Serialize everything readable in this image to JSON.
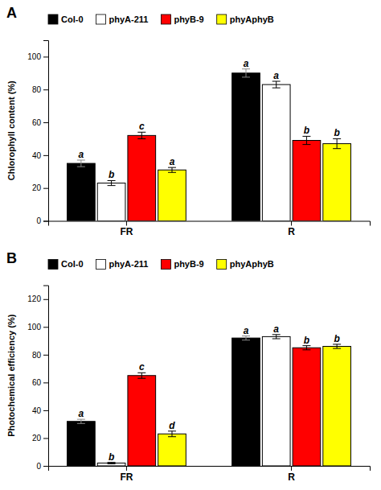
{
  "chart_data": [
    {
      "type": "bar",
      "title": "A",
      "ylabel": "Chlorophyll content (%)",
      "categories": [
        "FR",
        "R"
      ],
      "series": [
        {
          "name": "Col-0",
          "color": "#000000",
          "values": [
            35,
            90
          ],
          "errors": [
            2.0,
            2.5
          ],
          "letters": [
            "a",
            "a"
          ]
        },
        {
          "name": "phyA-211",
          "color": "#ffffff",
          "values": [
            23,
            83
          ],
          "errors": [
            1.5,
            2.0
          ],
          "letters": [
            "b",
            "a"
          ]
        },
        {
          "name": "phyB-9",
          "color": "#ff0000",
          "values": [
            52,
            49
          ],
          "errors": [
            2.0,
            2.5
          ],
          "letters": [
            "c",
            "b"
          ]
        },
        {
          "name": "phyAphyB",
          "color": "#ffff00",
          "values": [
            31,
            47
          ],
          "errors": [
            1.5,
            3.0
          ],
          "letters": [
            "a",
            "b"
          ]
        }
      ],
      "ylim": [
        0,
        110
      ],
      "yticks": [
        0,
        20,
        40,
        60,
        80,
        100
      ],
      "grid": false,
      "legend": "top"
    },
    {
      "type": "bar",
      "title": "B",
      "ylabel": "Photochemical efficiency (%)",
      "categories": [
        "FR",
        "R"
      ],
      "series": [
        {
          "name": "Col-0",
          "color": "#000000",
          "values": [
            32,
            92
          ],
          "errors": [
            1.5,
            1.5
          ],
          "letters": [
            "a",
            "a"
          ]
        },
        {
          "name": "phyA-211",
          "color": "#ffffff",
          "values": [
            2,
            93
          ],
          "errors": [
            0.5,
            1.5
          ],
          "letters": [
            "b",
            "a"
          ]
        },
        {
          "name": "phyB-9",
          "color": "#ff0000",
          "values": [
            65,
            85
          ],
          "errors": [
            2.0,
            1.5
          ],
          "letters": [
            "c",
            "b"
          ]
        },
        {
          "name": "phyAphyB",
          "color": "#ffff00",
          "values": [
            23,
            86
          ],
          "errors": [
            2.0,
            1.5
          ],
          "letters": [
            "d",
            "b"
          ]
        }
      ],
      "ylim": [
        0,
        130
      ],
      "yticks": [
        0,
        20,
        40,
        60,
        80,
        100,
        120
      ],
      "grid": false,
      "legend": "top"
    }
  ]
}
